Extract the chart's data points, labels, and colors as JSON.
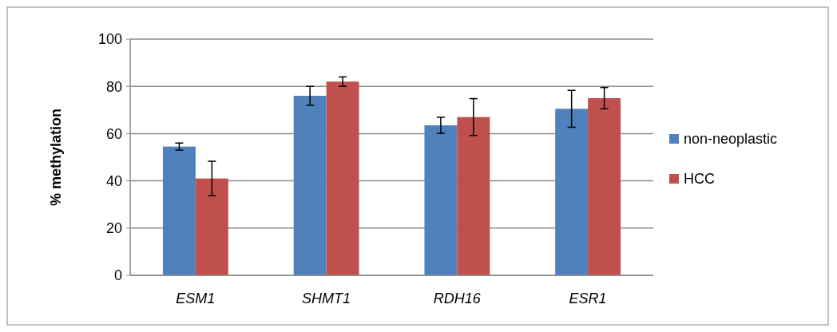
{
  "chart_data": {
    "type": "bar",
    "ylabel": "% methylation",
    "categories": [
      "ESM1",
      "SHMT1",
      "RDH16",
      "ESR1"
    ],
    "series": [
      {
        "name": "non-neoplastic",
        "color": "#4f81bd",
        "values": [
          54.5,
          76,
          63.5,
          70.5
        ],
        "errors": [
          1.5,
          4,
          3.4,
          7.8
        ]
      },
      {
        "name": "HCC",
        "color": "#c0504d",
        "values": [
          41,
          82,
          67,
          75
        ],
        "errors": [
          7.3,
          2,
          7.8,
          4.5
        ]
      }
    ],
    "ylim": [
      0,
      100
    ],
    "yticks": [
      0,
      20,
      40,
      60,
      80,
      100
    ],
    "grid": "y",
    "legend": "right"
  }
}
